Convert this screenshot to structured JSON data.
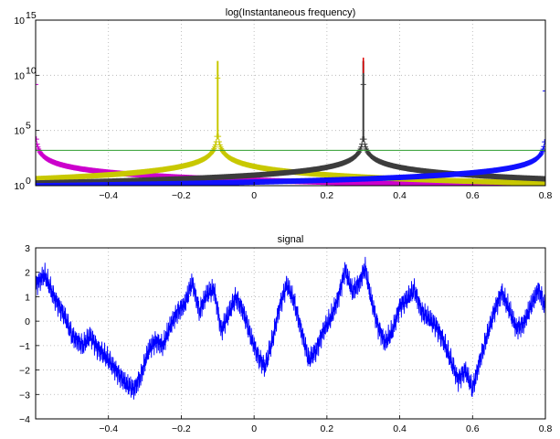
{
  "chart_data": [
    {
      "type": "line",
      "title": "log(Instantaneous frequency)",
      "xlim": [
        -0.6,
        0.8
      ],
      "y_scale": "log",
      "ylim_exponent": [
        0,
        15
      ],
      "x_ticks": [
        "−0.4",
        "−0.2",
        "0",
        "0.2",
        "0.4",
        "0.6",
        "0.8"
      ],
      "x_tick_values": [
        -0.4,
        -0.2,
        0,
        0.2,
        0.4,
        0.6,
        0.8
      ],
      "y_ticks": [
        {
          "base": "10",
          "exp": "0",
          "value": 0
        },
        {
          "base": "10",
          "exp": "5",
          "value": 5
        },
        {
          "base": "10",
          "exp": "10",
          "value": 10
        },
        {
          "base": "10",
          "exp": "15",
          "value": 15
        }
      ],
      "grid": true,
      "marker": "+",
      "series": [
        {
          "color": "#cc00cc",
          "singularity_x": -0.6,
          "log10_scale": 1.5
        },
        {
          "color": "#c8c800",
          "singularity_x": -0.1,
          "log10_scale": 1.6
        },
        {
          "color": "#3c3c3c",
          "singularity_x": 0.3,
          "log10_scale": 1.5
        },
        {
          "color": "#1010ff",
          "singularity_x": 0.8,
          "log10_scale": 1.4
        }
      ],
      "reference_line": {
        "color": "#2e9e2e",
        "log10_value": 3.2
      },
      "peak_accent": {
        "x": 0.3,
        "color": "#dd0000"
      }
    },
    {
      "type": "line",
      "title": "signal",
      "xlim": [
        -0.6,
        0.8
      ],
      "ylim": [
        -4,
        3
      ],
      "x_ticks": [
        "−0.4",
        "−0.2",
        "0",
        "0.2",
        "0.4",
        "0.6",
        "0.8"
      ],
      "x_tick_values": [
        -0.4,
        -0.2,
        0,
        0.2,
        0.4,
        0.6,
        0.8
      ],
      "y_ticks": [
        "−4",
        "−3",
        "−2",
        "−1",
        "0",
        "1",
        "2",
        "3"
      ],
      "y_tick_values": [
        -4,
        -3,
        -2,
        -1,
        0,
        1,
        2,
        3
      ],
      "grid": true,
      "series": [
        {
          "color": "#0000ff"
        }
      ],
      "envelope_points": [
        [
          -0.6,
          1.5
        ],
        [
          -0.575,
          1.9
        ],
        [
          -0.55,
          1.0
        ],
        [
          -0.52,
          0.2
        ],
        [
          -0.5,
          -0.6
        ],
        [
          -0.47,
          -1.0
        ],
        [
          -0.45,
          -0.6
        ],
        [
          -0.43,
          -1.1
        ],
        [
          -0.41,
          -1.4
        ],
        [
          -0.38,
          -2.0
        ],
        [
          -0.35,
          -2.6
        ],
        [
          -0.33,
          -2.8
        ],
        [
          -0.31,
          -2.2
        ],
        [
          -0.29,
          -1.2
        ],
        [
          -0.27,
          -0.8
        ],
        [
          -0.25,
          -1.0
        ],
        [
          -0.23,
          -0.2
        ],
        [
          -0.21,
          0.4
        ],
        [
          -0.19,
          0.7
        ],
        [
          -0.17,
          1.6
        ],
        [
          -0.15,
          0.4
        ],
        [
          -0.13,
          1.1
        ],
        [
          -0.11,
          1.3
        ],
        [
          -0.09,
          -0.4
        ],
        [
          -0.07,
          0.3
        ],
        [
          -0.05,
          1.0
        ],
        [
          -0.03,
          0.4
        ],
        [
          -0.01,
          -0.6
        ],
        [
          0.01,
          -1.4
        ],
        [
          0.03,
          -1.9
        ],
        [
          0.05,
          -0.8
        ],
        [
          0.07,
          0.6
        ],
        [
          0.09,
          1.5
        ],
        [
          0.11,
          0.8
        ],
        [
          0.13,
          -0.4
        ],
        [
          0.15,
          -1.6
        ],
        [
          0.17,
          -1.2
        ],
        [
          0.19,
          -0.4
        ],
        [
          0.21,
          0.1
        ],
        [
          0.23,
          0.9
        ],
        [
          0.25,
          2.1
        ],
        [
          0.27,
          1.2
        ],
        [
          0.29,
          1.6
        ],
        [
          0.305,
          2.2
        ],
        [
          0.32,
          1.0
        ],
        [
          0.34,
          -0.2
        ],
        [
          0.36,
          -0.9
        ],
        [
          0.38,
          -0.4
        ],
        [
          0.4,
          0.6
        ],
        [
          0.42,
          0.9
        ],
        [
          0.44,
          1.3
        ],
        [
          0.46,
          0.4
        ],
        [
          0.48,
          0.1
        ],
        [
          0.5,
          -0.2
        ],
        [
          0.52,
          -0.8
        ],
        [
          0.54,
          -1.6
        ],
        [
          0.56,
          -2.4
        ],
        [
          0.58,
          -2.0
        ],
        [
          0.6,
          -2.8
        ],
        [
          0.62,
          -1.6
        ],
        [
          0.64,
          -0.6
        ],
        [
          0.66,
          0.4
        ],
        [
          0.68,
          1.2
        ],
        [
          0.7,
          0.5
        ],
        [
          0.72,
          -0.3
        ],
        [
          0.74,
          -0.1
        ],
        [
          0.76,
          0.6
        ],
        [
          0.78,
          1.3
        ],
        [
          0.79,
          1.0
        ],
        [
          0.8,
          0.5
        ]
      ]
    }
  ]
}
